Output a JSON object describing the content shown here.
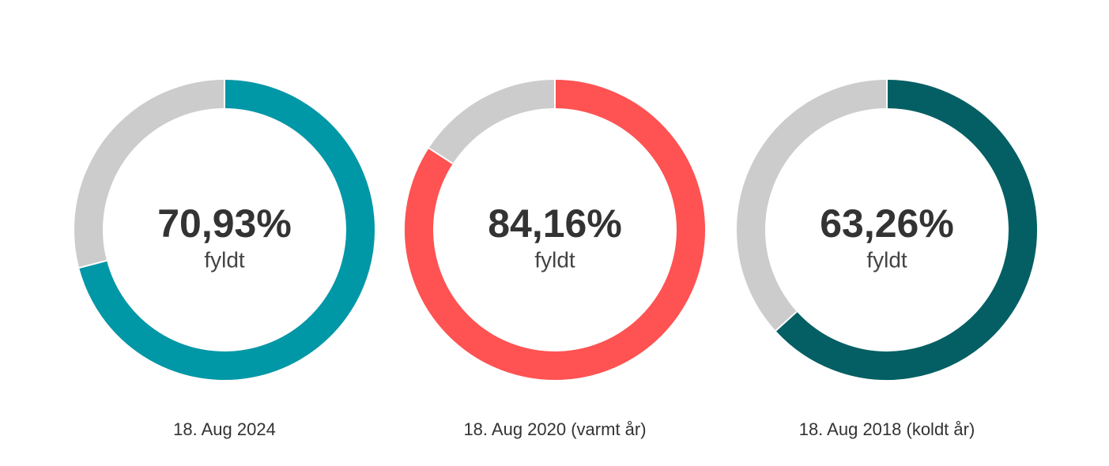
{
  "chart_data": [
    {
      "type": "donut",
      "title": "18. Aug 2024",
      "values": [
        70.93
      ],
      "value_labels": [
        "70,93%"
      ],
      "center_label": "fyldt",
      "color": "#0097a7",
      "track_color": "#cccccc",
      "ylim": [
        0,
        100
      ]
    },
    {
      "type": "donut",
      "title": "18. Aug 2020 (varmt år)",
      "values": [
        84.16
      ],
      "value_labels": [
        "84,16%"
      ],
      "center_label": "fyldt",
      "color": "#ff5252",
      "track_color": "#cccccc",
      "ylim": [
        0,
        100
      ]
    },
    {
      "type": "donut",
      "title": "18. Aug 2018 (koldt år)",
      "values": [
        63.26
      ],
      "value_labels": [
        "63,26%"
      ],
      "center_label": "fyldt",
      "color": "#035f63",
      "track_color": "#cccccc",
      "ylim": [
        0,
        100
      ]
    }
  ]
}
